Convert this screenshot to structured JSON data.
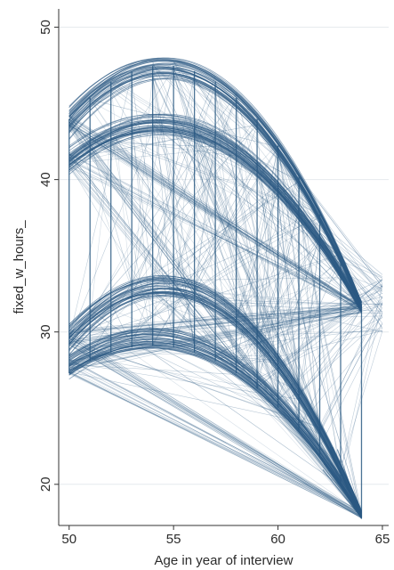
{
  "chart_data": {
    "type": "line",
    "title": "",
    "xlabel": "Age in year of interview",
    "ylabel": "fixed_w_hours_",
    "xlim": [
      49.5,
      65.3
    ],
    "ylim": [
      17.3,
      51.2
    ],
    "x_ticks": [
      50,
      55,
      60,
      65
    ],
    "y_ticks": [
      20,
      30,
      40,
      50
    ],
    "grid": "horizontal",
    "legend": "none",
    "colors": {
      "line": "#2b5a83",
      "grid": "#e6eaee",
      "axis": "#333333",
      "background": "#ffffff"
    },
    "fitted_bands": [
      {
        "name": "",
        "peak_age": 54.5,
        "peak_hours": 47.3,
        "hours_at_50": 45.3,
        "hours_at_64": 31.7
      },
      {
        "name": "",
        "peak_age": 54.3,
        "peak_hours": 43.6,
        "hours_at_50": 42.2,
        "hours_at_64": 31.5
      },
      {
        "name": "",
        "peak_age": 54.5,
        "peak_hours": 33.0,
        "hours_at_50": 31.1,
        "hours_at_64": 18.0
      },
      {
        "name": "",
        "peak_age": 54.0,
        "peak_hours": 29.6,
        "hours_at_50": 27.9,
        "hours_at_64": 18.0
      }
    ],
    "vertical_trace_ages": [
      50,
      51,
      52,
      53,
      54,
      55,
      56,
      57,
      58,
      59,
      60,
      61,
      62,
      63,
      64
    ],
    "extremes": {
      "max_hours": 47.4,
      "min_hours": 17.8,
      "min_age": 64
    }
  }
}
